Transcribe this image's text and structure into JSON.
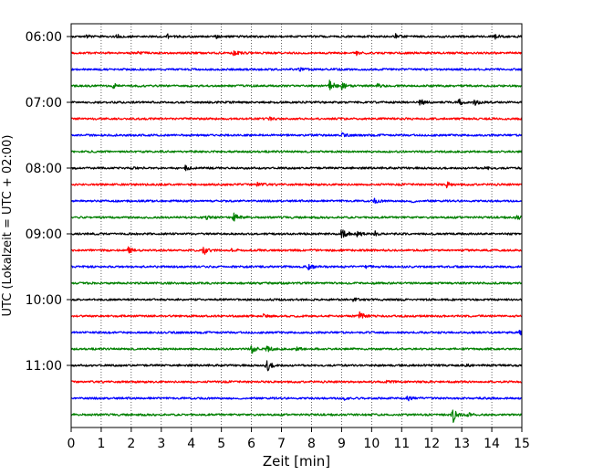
{
  "chart_data": {
    "type": "line",
    "title": "",
    "xlabel": "Zeit  [min]",
    "ylabel": "UTC (Lokalzeit = UTC + 02:00)",
    "xlim": [
      0,
      15
    ],
    "x_ticks": [
      "0",
      "1",
      "2",
      "3",
      "4",
      "5",
      "6",
      "7",
      "8",
      "9",
      "10",
      "11",
      "12",
      "13",
      "14",
      "15"
    ],
    "y_ticks": [
      "06:00",
      "07:00",
      "08:00",
      "09:00",
      "10:00",
      "11:00"
    ],
    "grid": "vertical dotted",
    "colors": [
      "#000000",
      "#ff0000",
      "#0000ff",
      "#008000"
    ],
    "series": [
      {
        "start": "06:00",
        "color": "#000000",
        "events": [
          [
            0.5,
            0.3
          ],
          [
            1.5,
            0.35
          ],
          [
            3.2,
            0.4
          ],
          [
            4.8,
            0.3
          ],
          [
            10.8,
            0.45
          ],
          [
            14.1,
            0.4
          ]
        ]
      },
      {
        "start": "06:15",
        "color": "#ff0000",
        "events": [
          [
            2.2,
            0.25
          ],
          [
            5.4,
            0.5
          ],
          [
            9.5,
            0.3
          ]
        ]
      },
      {
        "start": "06:30",
        "color": "#0000ff",
        "events": [
          [
            7.6,
            0.25
          ]
        ]
      },
      {
        "start": "06:45",
        "color": "#008000",
        "events": [
          [
            1.4,
            0.45
          ],
          [
            8.6,
            1.2
          ],
          [
            9.0,
            0.6
          ],
          [
            10.2,
            0.35
          ]
        ]
      },
      {
        "start": "07:00",
        "color": "#000000",
        "events": [
          [
            11.6,
            0.6
          ],
          [
            12.9,
            0.6
          ],
          [
            13.4,
            0.7
          ]
        ]
      },
      {
        "start": "07:15",
        "color": "#ff0000",
        "events": [
          [
            6.6,
            0.25
          ],
          [
            15.0,
            0.3
          ]
        ]
      },
      {
        "start": "07:30",
        "color": "#0000ff",
        "events": [
          [
            9.0,
            0.35
          ]
        ]
      },
      {
        "start": "07:45",
        "color": "#008000",
        "events": []
      },
      {
        "start": "08:00",
        "color": "#000000",
        "events": [
          [
            2.0,
            0.2
          ],
          [
            3.8,
            0.35
          ],
          [
            13.8,
            0.3
          ]
        ]
      },
      {
        "start": "08:15",
        "color": "#ff0000",
        "events": [
          [
            6.2,
            0.5
          ],
          [
            12.5,
            0.45
          ]
        ]
      },
      {
        "start": "08:30",
        "color": "#0000ff",
        "events": [
          [
            10.1,
            0.4
          ],
          [
            11.3,
            0.3
          ]
        ]
      },
      {
        "start": "08:45",
        "color": "#008000",
        "events": [
          [
            4.5,
            0.25
          ],
          [
            5.4,
            1.0
          ],
          [
            14.8,
            0.5
          ]
        ]
      },
      {
        "start": "09:00",
        "color": "#000000",
        "events": [
          [
            9.0,
            1.3
          ],
          [
            9.5,
            0.6
          ],
          [
            10.1,
            0.45
          ]
        ]
      },
      {
        "start": "09:15",
        "color": "#ff0000",
        "events": [
          [
            1.9,
            0.6
          ],
          [
            4.4,
            1.1
          ],
          [
            5.2,
            0.6
          ]
        ]
      },
      {
        "start": "09:30",
        "color": "#0000ff",
        "events": [
          [
            7.9,
            0.5
          ],
          [
            9.8,
            0.3
          ]
        ]
      },
      {
        "start": "09:45",
        "color": "#008000",
        "events": []
      },
      {
        "start": "10:00",
        "color": "#000000",
        "events": [
          [
            9.4,
            0.4
          ]
        ]
      },
      {
        "start": "10:15",
        "color": "#ff0000",
        "events": [
          [
            6.4,
            0.25
          ],
          [
            9.6,
            0.7
          ]
        ]
      },
      {
        "start": "10:30",
        "color": "#0000ff",
        "events": [
          [
            14.9,
            0.5
          ]
        ]
      },
      {
        "start": "10:45",
        "color": "#008000",
        "events": [
          [
            6.0,
            0.8
          ],
          [
            6.5,
            0.6
          ],
          [
            7.5,
            0.3
          ]
        ]
      },
      {
        "start": "11:00",
        "color": "#000000",
        "events": [
          [
            6.5,
            1.2
          ],
          [
            13.0,
            0.45
          ]
        ]
      },
      {
        "start": "11:15",
        "color": "#ff0000",
        "events": [
          [
            10.5,
            0.25
          ]
        ]
      },
      {
        "start": "11:30",
        "color": "#0000ff",
        "events": [
          [
            9.1,
            0.35
          ],
          [
            11.2,
            0.5
          ]
        ]
      },
      {
        "start": "11:45",
        "color": "#008000",
        "events": [
          [
            12.7,
            1.6
          ],
          [
            13.2,
            0.4
          ]
        ]
      }
    ]
  }
}
